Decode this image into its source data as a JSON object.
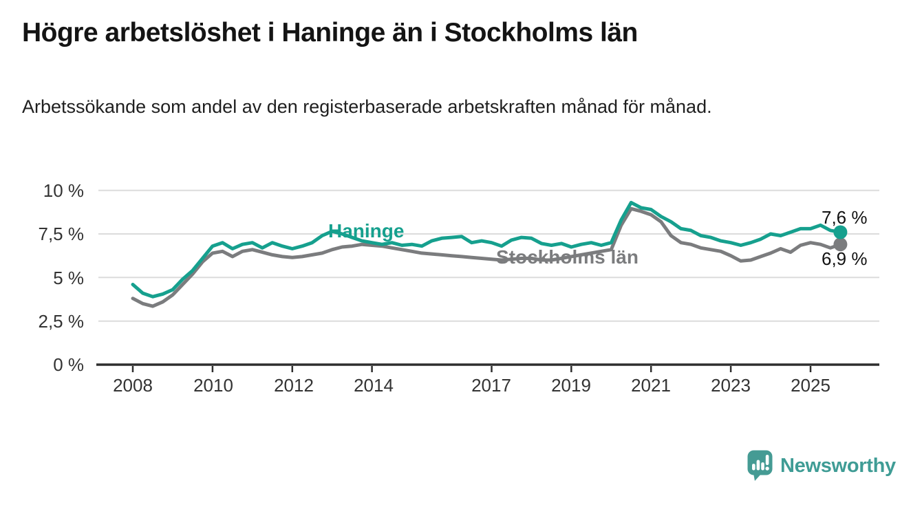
{
  "header": {
    "title": "Högre arbetslöshet i Haninge än i Stockholms län",
    "subtitle": "Arbetssökande som andel av den registerbaserade arbetskraften månad för månad."
  },
  "colors": {
    "haninge_line": "#16a08e",
    "stockholm_line": "#7b7c7e",
    "gridline": "#dcdcdc",
    "axis": "#2e2e2e",
    "tick_text": "#333333",
    "brand_teal": "#3f9c95"
  },
  "chart_data": {
    "type": "line",
    "title": "Högre arbetslöshet i Haninge än i Stockholms län",
    "subtitle": "Arbetssökande som andel av den registerbaserade arbetskraften månad för månad.",
    "xlabel": "",
    "ylabel": "",
    "ylim": [
      0,
      10
    ],
    "xlim": [
      2007.1,
      2026.7
    ],
    "grid": "horizontal",
    "legend_position": "inline-labels",
    "ytick_values": [
      0,
      2.5,
      5,
      7.5,
      10
    ],
    "ytick_labels": [
      "0 %",
      "2,5 %",
      "5 %",
      "7,5 %",
      "10 %"
    ],
    "xtick_values": [
      2008,
      2010,
      2012,
      2014,
      2017,
      2019,
      2021,
      2023,
      2025
    ],
    "xtick_labels": [
      "2008",
      "2010",
      "2012",
      "2014",
      "2017",
      "2019",
      "2021",
      "2023",
      "2025"
    ],
    "x": [
      2008.0,
      2008.25,
      2008.5,
      2008.75,
      2009.0,
      2009.25,
      2009.5,
      2009.75,
      2010.0,
      2010.25,
      2010.5,
      2010.75,
      2011.0,
      2011.25,
      2011.5,
      2011.75,
      2012.0,
      2012.25,
      2012.5,
      2012.75,
      2013.0,
      2013.25,
      2013.5,
      2013.75,
      2014.0,
      2014.25,
      2014.5,
      2014.75,
      2015.0,
      2015.25,
      2015.5,
      2015.75,
      2016.0,
      2016.25,
      2016.5,
      2016.75,
      2017.0,
      2017.25,
      2017.5,
      2017.75,
      2018.0,
      2018.25,
      2018.5,
      2018.75,
      2019.0,
      2019.25,
      2019.5,
      2019.75,
      2020.0,
      2020.25,
      2020.5,
      2020.75,
      2021.0,
      2021.25,
      2021.5,
      2021.75,
      2022.0,
      2022.25,
      2022.5,
      2022.75,
      2023.0,
      2023.25,
      2023.5,
      2023.75,
      2024.0,
      2024.25,
      2024.5,
      2024.75,
      2025.0,
      2025.25,
      2025.5,
      2025.75
    ],
    "series": [
      {
        "name": "Haninge",
        "color": "#16a08e",
        "end_label": "7,6 %",
        "end_value": 7.6,
        "values": [
          4.6,
          4.1,
          3.9,
          4.05,
          4.3,
          4.9,
          5.4,
          6.1,
          6.8,
          7.0,
          6.65,
          6.9,
          7.0,
          6.7,
          7.0,
          6.8,
          6.65,
          6.8,
          7.0,
          7.4,
          7.65,
          7.5,
          7.3,
          7.1,
          7.0,
          6.9,
          7.0,
          6.85,
          6.9,
          6.8,
          7.1,
          7.25,
          7.3,
          7.35,
          7.0,
          7.1,
          7.0,
          6.8,
          7.15,
          7.3,
          7.25,
          6.95,
          6.85,
          6.95,
          6.75,
          6.9,
          7.0,
          6.85,
          7.0,
          8.3,
          9.3,
          9.0,
          8.9,
          8.5,
          8.2,
          7.8,
          7.7,
          7.4,
          7.3,
          7.1,
          7.0,
          6.85,
          7.0,
          7.2,
          7.5,
          7.4,
          7.6,
          7.8,
          7.8,
          8.0,
          7.7,
          7.6
        ]
      },
      {
        "name": "Stockholms län",
        "color": "#7b7c7e",
        "end_label": "6,9 %",
        "end_value": 6.9,
        "values": [
          3.8,
          3.5,
          3.35,
          3.6,
          4.0,
          4.6,
          5.2,
          5.9,
          6.4,
          6.5,
          6.2,
          6.5,
          6.6,
          6.45,
          6.3,
          6.2,
          6.15,
          6.2,
          6.3,
          6.4,
          6.6,
          6.75,
          6.8,
          6.9,
          6.85,
          6.8,
          6.7,
          6.6,
          6.5,
          6.4,
          6.35,
          6.3,
          6.25,
          6.2,
          6.15,
          6.1,
          6.05,
          6.0,
          6.05,
          6.1,
          6.1,
          6.0,
          6.0,
          6.1,
          6.2,
          6.3,
          6.4,
          6.5,
          6.6,
          8.0,
          8.95,
          8.8,
          8.6,
          8.2,
          7.4,
          7.0,
          6.9,
          6.7,
          6.6,
          6.5,
          6.25,
          5.95,
          6.0,
          6.2,
          6.4,
          6.65,
          6.45,
          6.85,
          7.0,
          6.9,
          6.7,
          6.9
        ]
      }
    ]
  },
  "footer": {
    "brand": "Newsworthy",
    "logo_icon": "speech-bubble-bar-chart-icon"
  }
}
